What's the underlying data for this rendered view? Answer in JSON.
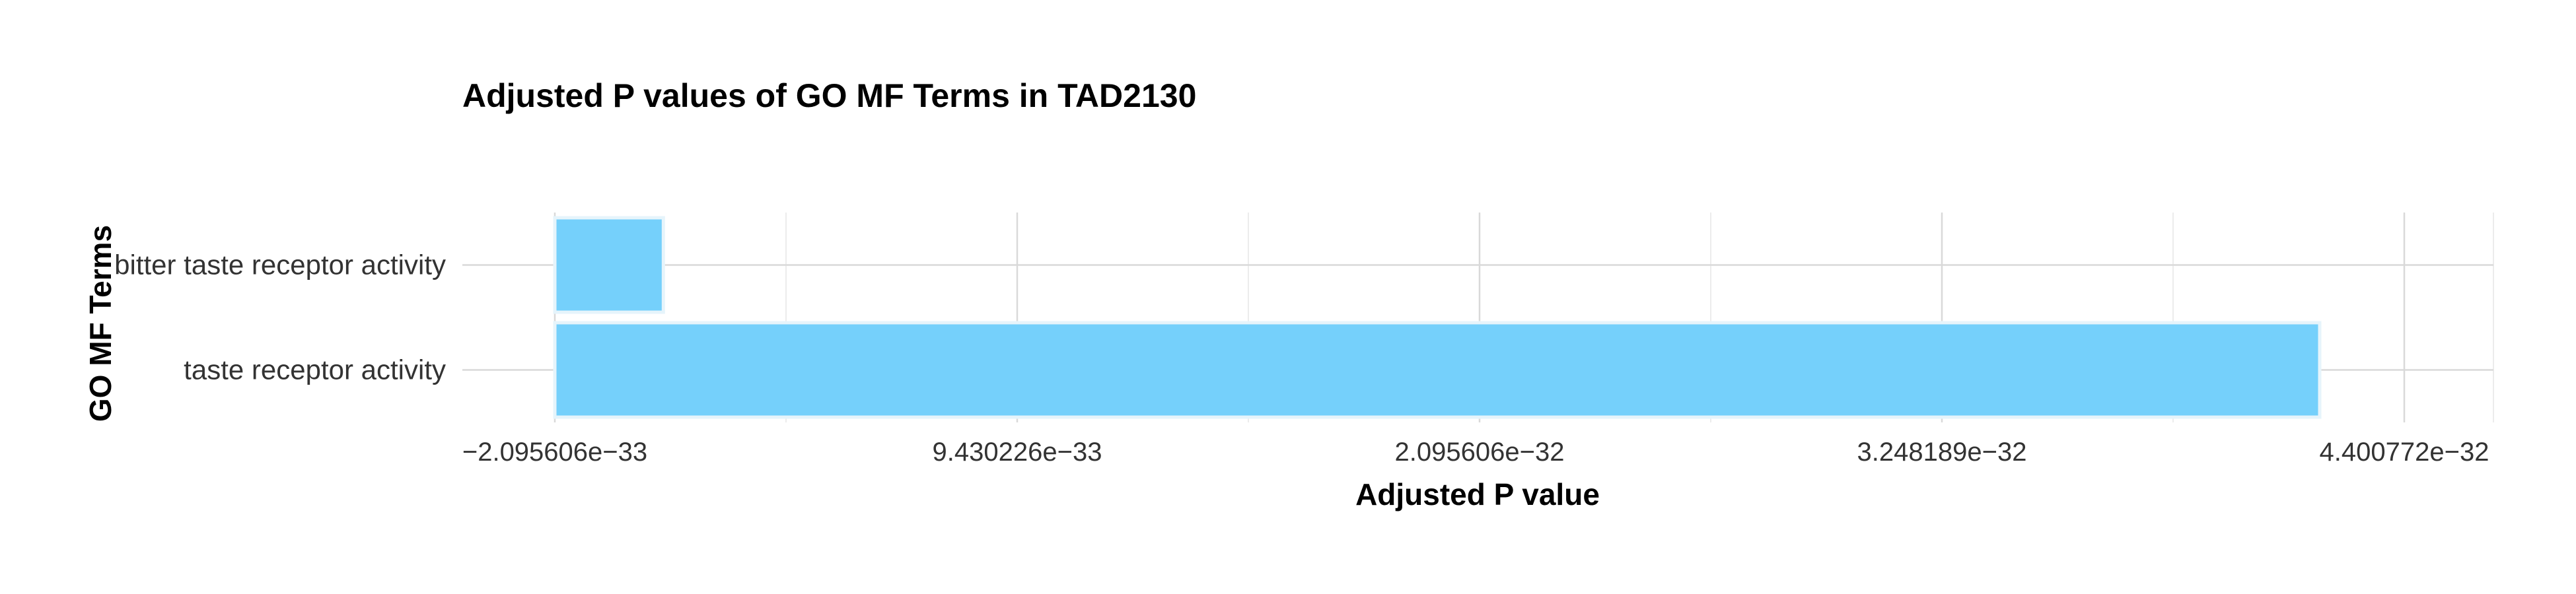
{
  "chart_data": {
    "type": "bar",
    "orientation": "horizontal",
    "title": "Adjusted P values of GO MF Terms in TAD2130",
    "xlabel": "Adjusted P value",
    "ylabel": "GO MF Terms",
    "categories": [
      "bitter taste receptor activity",
      "taste receptor activity"
    ],
    "values": [
      6.1e-34,
      4.19e-32
    ],
    "xlim": [
      -2.095606e-33,
      4.400772e-32
    ],
    "xticks": [
      -2.095606e-33,
      9.430226e-33,
      2.095606e-32,
      3.248189e-32,
      4.400772e-32
    ],
    "xtick_labels": [
      "−2.095606e−33",
      "9.430226e−33",
      "2.095606e−32",
      "3.248189e−32",
      "4.400772e−32"
    ],
    "grid": true,
    "legend": "none",
    "bar_color": "#75d0fb"
  }
}
